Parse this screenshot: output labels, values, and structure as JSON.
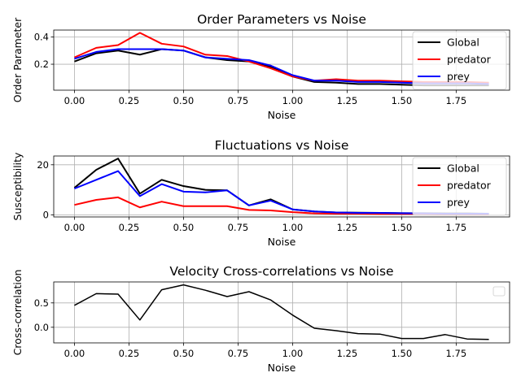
{
  "chart_data": [
    {
      "type": "line",
      "title": "Order Parameters vs Noise",
      "xlabel": "Noise",
      "ylabel": "Order Parameter",
      "xlim": [
        -0.095,
        1.995
      ],
      "ylim": [
        0.01,
        0.45
      ],
      "xticks": [
        "0.00",
        "0.25",
        "0.50",
        "0.75",
        "1.00",
        "1.25",
        "1.50",
        "1.75"
      ],
      "xtick_values": [
        0,
        0.25,
        0.5,
        0.75,
        1.0,
        1.25,
        1.5,
        1.75
      ],
      "yticks": [
        "0.2",
        "0.4"
      ],
      "ytick_values": [
        0.2,
        0.4
      ],
      "grid": true,
      "legend": "top-right",
      "x": [
        0.0,
        0.1,
        0.2,
        0.3,
        0.4,
        0.5,
        0.6,
        0.7,
        0.8,
        0.9,
        1.0,
        1.1,
        1.2,
        1.3,
        1.4,
        1.5,
        1.6,
        1.7,
        1.8,
        1.9
      ],
      "series": [
        {
          "name": "Global",
          "color": "#000000",
          "values": [
            0.22,
            0.28,
            0.3,
            0.27,
            0.31,
            0.3,
            0.25,
            0.23,
            0.22,
            0.18,
            0.11,
            0.07,
            0.065,
            0.055,
            0.055,
            0.05,
            0.045,
            0.045,
            0.045,
            0.045
          ]
        },
        {
          "name": "predator",
          "color": "#ff0000",
          "values": [
            0.25,
            0.32,
            0.34,
            0.43,
            0.35,
            0.33,
            0.27,
            0.26,
            0.22,
            0.17,
            0.11,
            0.08,
            0.09,
            0.08,
            0.08,
            0.075,
            0.07,
            0.07,
            0.07,
            0.065
          ]
        },
        {
          "name": "prey",
          "color": "#0000ff",
          "values": [
            0.24,
            0.29,
            0.31,
            0.31,
            0.31,
            0.3,
            0.25,
            0.24,
            0.23,
            0.19,
            0.12,
            0.08,
            0.08,
            0.07,
            0.07,
            0.065,
            0.06,
            0.06,
            0.06,
            0.055
          ]
        }
      ]
    },
    {
      "type": "line",
      "title": "Fluctuations vs Noise",
      "xlabel": "Noise",
      "ylabel": "Susceptibility",
      "xlim": [
        -0.095,
        1.995
      ],
      "ylim": [
        -0.8,
        23.5
      ],
      "xticks": [
        "0.00",
        "0.25",
        "0.50",
        "0.75",
        "1.00",
        "1.25",
        "1.50",
        "1.75"
      ],
      "xtick_values": [
        0,
        0.25,
        0.5,
        0.75,
        1.0,
        1.25,
        1.5,
        1.75
      ],
      "yticks": [
        "0",
        "20"
      ],
      "ytick_values": [
        0,
        20
      ],
      "grid": true,
      "legend": "top-right",
      "x": [
        0.0,
        0.1,
        0.2,
        0.3,
        0.4,
        0.5,
        0.6,
        0.7,
        0.8,
        0.9,
        1.0,
        1.1,
        1.2,
        1.3,
        1.4,
        1.5,
        1.6,
        1.7,
        1.8,
        1.9
      ],
      "series": [
        {
          "name": "Global",
          "color": "#000000",
          "values": [
            10.8,
            18.0,
            22.5,
            8.5,
            14.0,
            11.5,
            10.0,
            9.8,
            3.8,
            6.2,
            2.2,
            1.4,
            1.0,
            0.9,
            0.8,
            0.7,
            0.7,
            0.6,
            0.6,
            0.5
          ]
        },
        {
          "name": "predator",
          "color": "#ff0000",
          "values": [
            4.0,
            6.0,
            7.0,
            3.0,
            5.3,
            3.5,
            3.5,
            3.5,
            2.0,
            1.8,
            1.1,
            0.6,
            0.5,
            0.5,
            0.4,
            0.4,
            0.4,
            0.3,
            0.3,
            0.3
          ]
        },
        {
          "name": "prey",
          "color": "#0000ff",
          "values": [
            10.5,
            14.0,
            17.5,
            7.5,
            12.3,
            9.3,
            9.0,
            9.8,
            3.8,
            5.7,
            2.2,
            1.4,
            1.0,
            0.8,
            0.8,
            0.7,
            0.6,
            0.5,
            0.5,
            0.5
          ]
        }
      ]
    },
    {
      "type": "line",
      "title": "Velocity Cross-correlations vs Noise",
      "xlabel": "Noise",
      "ylabel": "Cross-correlation",
      "xlim": [
        -0.095,
        1.995
      ],
      "ylim": [
        -0.32,
        0.93
      ],
      "xticks": [
        "0.00",
        "0.25",
        "0.50",
        "0.75",
        "1.00",
        "1.25",
        "1.50",
        "1.75"
      ],
      "xtick_values": [
        0,
        0.25,
        0.5,
        0.75,
        1.0,
        1.25,
        1.5,
        1.75
      ],
      "yticks": [
        "0.0",
        "0.5"
      ],
      "ytick_values": [
        0.0,
        0.5
      ],
      "grid": true,
      "legend": "top-right",
      "x": [
        0.0,
        0.1,
        0.2,
        0.3,
        0.4,
        0.5,
        0.6,
        0.7,
        0.8,
        0.9,
        1.0,
        1.1,
        1.2,
        1.3,
        1.4,
        1.5,
        1.6,
        1.7,
        1.8,
        1.9
      ],
      "series": [
        {
          "color": "#000000",
          "values": [
            0.45,
            0.69,
            0.68,
            0.15,
            0.77,
            0.87,
            0.76,
            0.63,
            0.73,
            0.56,
            0.25,
            -0.02,
            -0.07,
            -0.13,
            -0.14,
            -0.23,
            -0.23,
            -0.15,
            -0.24,
            -0.25
          ]
        }
      ]
    }
  ]
}
